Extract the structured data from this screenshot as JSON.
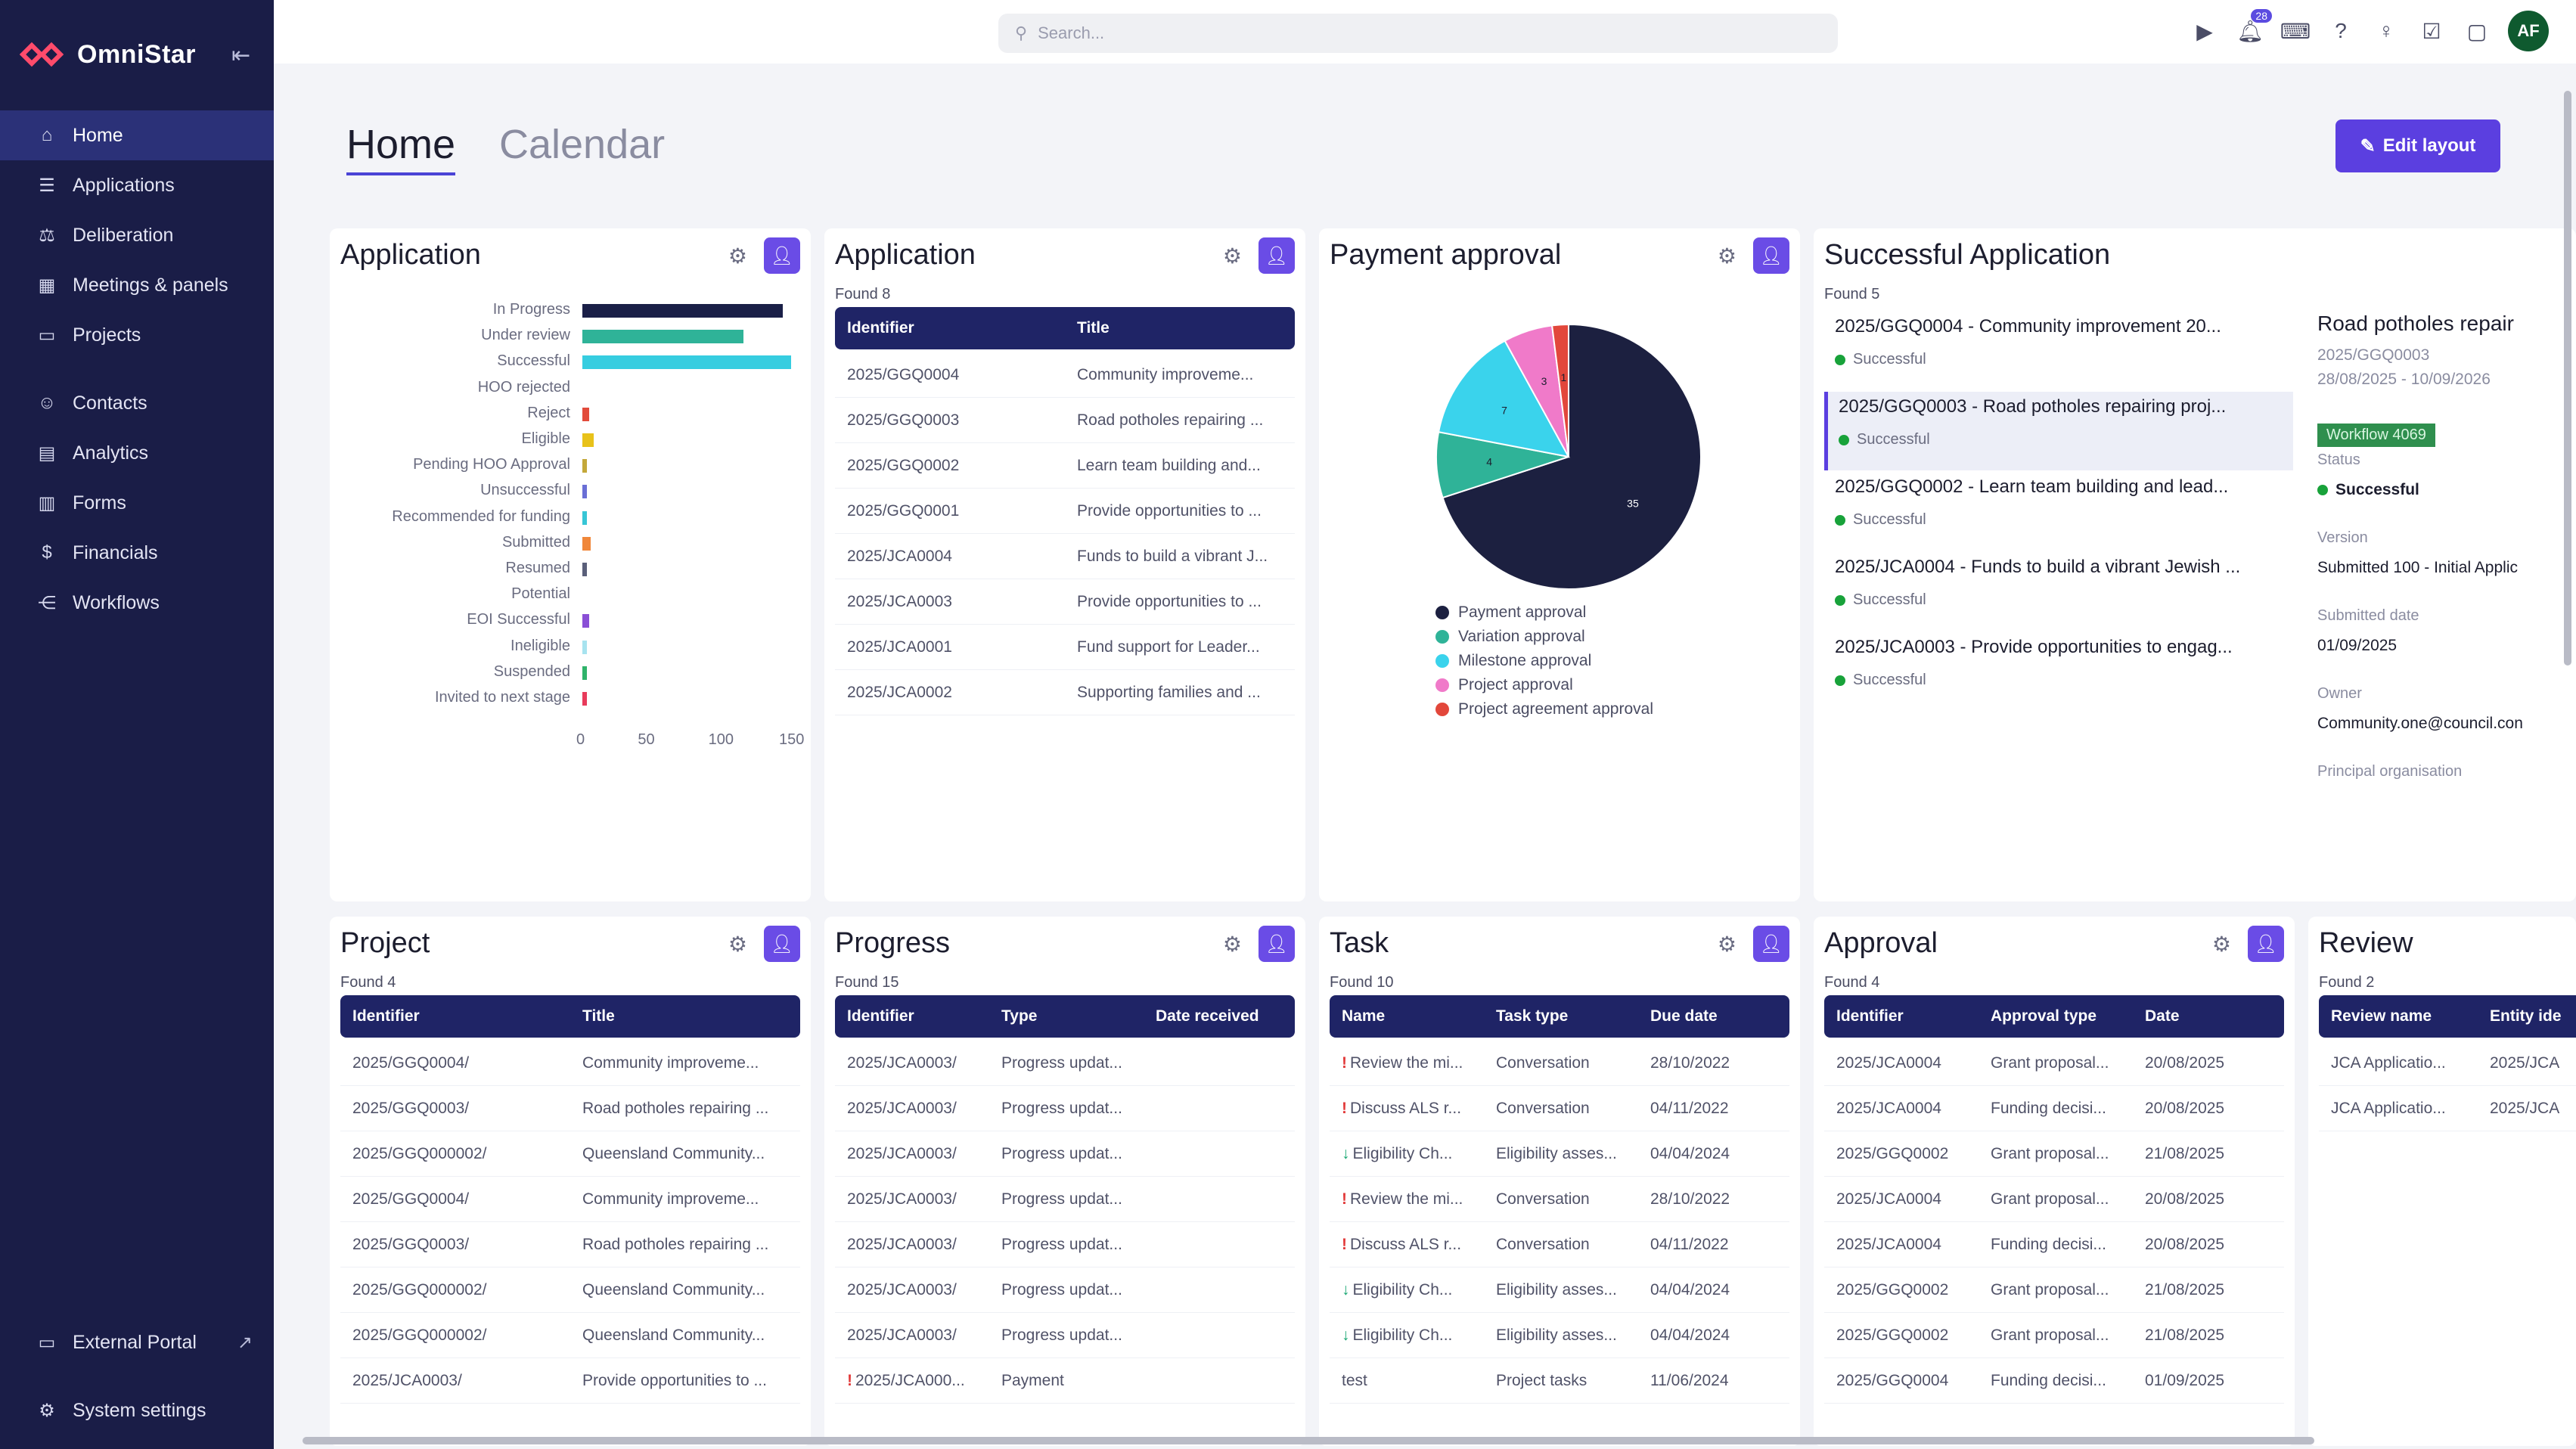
{
  "app": {
    "name": "OmniStar",
    "collapse_icon": "collapse-sidebar-icon"
  },
  "colors": {
    "sidebar_bg": "#1a1d47",
    "accent": "#5b3fe0",
    "table_header": "#1f2466",
    "success": "#18a23a"
  },
  "sidebar": {
    "items": [
      {
        "label": "Home",
        "icon": "home-icon",
        "active": true
      },
      {
        "label": "Applications",
        "icon": "list-icon"
      },
      {
        "label": "Deliberation",
        "icon": "gavel-icon"
      },
      {
        "label": "Meetings & panels",
        "icon": "calendar-icon"
      },
      {
        "label": "Projects",
        "icon": "monitor-icon"
      },
      {
        "label": "Contacts",
        "icon": "contacts-icon"
      },
      {
        "label": "Analytics",
        "icon": "analytics-icon"
      },
      {
        "label": "Forms",
        "icon": "forms-icon"
      },
      {
        "label": "Financials",
        "icon": "dollar-icon"
      },
      {
        "label": "Workflows",
        "icon": "workflow-icon"
      }
    ],
    "bottom": [
      {
        "label": "External Portal",
        "icon": "portal-icon"
      },
      {
        "label": "System settings",
        "icon": "settings-icon"
      }
    ]
  },
  "topbar": {
    "search_placeholder": "Search...",
    "notification_count": "28",
    "avatar": "AF"
  },
  "page": {
    "tabs": [
      {
        "label": "Home"
      },
      {
        "label": "Calendar"
      }
    ],
    "edit_layout": "Edit layout"
  },
  "widgets": {
    "application_chart": {
      "title": "Application"
    },
    "application_table": {
      "title": "Application",
      "found": "Found 8",
      "columns": [
        "Identifier",
        "Title"
      ],
      "rows": [
        [
          "2025/GGQ0004",
          "Community improveme..."
        ],
        [
          "2025/GGQ0003",
          "Road potholes repairing ..."
        ],
        [
          "2025/GGQ0002",
          "Learn team building and..."
        ],
        [
          "2025/GGQ0001",
          "Provide opportunities to ..."
        ],
        [
          "2025/JCA0004",
          "Funds to build a vibrant J..."
        ],
        [
          "2025/JCA0003",
          "Provide opportunities to ..."
        ],
        [
          "2025/JCA0001",
          "Fund support for Leader..."
        ],
        [
          "2025/JCA0002",
          "Supporting families and ..."
        ]
      ]
    },
    "payment_approval": {
      "title": "Payment approval"
    },
    "successful_application": {
      "title": "Successful Application",
      "found": "Found 5",
      "items": [
        {
          "title": "2025/GGQ0004 - Community improvement 20...",
          "status": "Successful"
        },
        {
          "title": "2025/GGQ0003 - Road potholes repairing proj...",
          "status": "Successful"
        },
        {
          "title": "2025/GGQ0002 - Learn team building and lead...",
          "status": "Successful"
        },
        {
          "title": "2025/JCA0004 - Funds to build a vibrant Jewish ...",
          "status": "Successful"
        },
        {
          "title": "2025/JCA0003 - Provide opportunities to engag...",
          "status": "Successful"
        }
      ],
      "detail": {
        "title": "Road potholes repair",
        "identifier": "2025/GGQ0003",
        "dates": "28/08/2025 - 10/09/2026",
        "workflow_badge": "Workflow 4069",
        "status_label": "Status",
        "status_value": "Successful",
        "version_label": "Version",
        "version_value": "Submitted 100 - Initial Applic",
        "submitted_label": "Submitted date",
        "submitted_value": "01/09/2025",
        "owner_label": "Owner",
        "owner_value": "Community.one@council.con",
        "org_label": "Principal organisation"
      }
    },
    "project": {
      "title": "Project",
      "found": "Found 4",
      "columns": [
        "Identifier",
        "Title"
      ],
      "rows": [
        [
          "2025/GGQ0004/",
          "Community improveme..."
        ],
        [
          "2025/GGQ0003/",
          "Road potholes repairing ..."
        ],
        [
          "2025/GGQ000002/",
          "Queensland Community..."
        ],
        [
          "2025/GGQ0004/",
          "Community improveme..."
        ],
        [
          "2025/GGQ0003/",
          "Road potholes repairing ..."
        ],
        [
          "2025/GGQ000002/",
          "Queensland Community..."
        ],
        [
          "2025/GGQ000002/",
          "Queensland Community..."
        ],
        [
          "2025/JCA0003/",
          "Provide opportunities to ..."
        ]
      ]
    },
    "progress": {
      "title": "Progress",
      "found": "Found 15",
      "columns": [
        "Identifier",
        "Type",
        "Date received"
      ],
      "rows": [
        [
          "2025/JCA0003/",
          "Progress updat...",
          ""
        ],
        [
          "2025/JCA0003/",
          "Progress updat...",
          ""
        ],
        [
          "2025/JCA0003/",
          "Progress updat...",
          ""
        ],
        [
          "2025/JCA0003/",
          "Progress updat...",
          ""
        ],
        [
          "2025/JCA0003/",
          "Progress updat...",
          ""
        ],
        [
          "2025/JCA0003/",
          "Progress updat...",
          ""
        ],
        [
          "2025/JCA0003/",
          "Progress updat...",
          ""
        ],
        [
          "2025/JCA000...",
          "Payment",
          ""
        ]
      ],
      "row_flags": [
        "",
        "",
        "",
        "",
        "",
        "",
        "",
        "!"
      ]
    },
    "task": {
      "title": "Task",
      "found": "Found 10",
      "columns": [
        "Name",
        "Task type",
        "Due date"
      ],
      "rows": [
        [
          "Review the mi...",
          "Conversation",
          "28/10/2022"
        ],
        [
          "Discuss ALS r...",
          "Conversation",
          "04/11/2022"
        ],
        [
          "Eligibility Ch...",
          "Eligibility asses...",
          "04/04/2024"
        ],
        [
          "Review the mi...",
          "Conversation",
          "28/10/2022"
        ],
        [
          "Discuss ALS r...",
          "Conversation",
          "04/11/2022"
        ],
        [
          "Eligibility Ch...",
          "Eligibility asses...",
          "04/04/2024"
        ],
        [
          "Eligibility Ch...",
          "Eligibility asses...",
          "04/04/2024"
        ],
        [
          "test",
          "Project tasks",
          "11/06/2024"
        ]
      ],
      "row_flags": [
        "!",
        "!",
        "↓",
        "!",
        "!",
        "↓",
        "↓",
        ""
      ]
    },
    "approval": {
      "title": "Approval",
      "found": "Found 4",
      "columns": [
        "Identifier",
        "Approval type",
        "Date"
      ],
      "rows": [
        [
          "2025/JCA0004",
          "Grant proposal...",
          "20/08/2025"
        ],
        [
          "2025/JCA0004",
          "Funding decisi...",
          "20/08/2025"
        ],
        [
          "2025/GGQ0002",
          "Grant proposal...",
          "21/08/2025"
        ],
        [
          "2025/JCA0004",
          "Grant proposal...",
          "20/08/2025"
        ],
        [
          "2025/JCA0004",
          "Funding decisi...",
          "20/08/2025"
        ],
        [
          "2025/GGQ0002",
          "Grant proposal...",
          "21/08/2025"
        ],
        [
          "2025/GGQ0002",
          "Grant proposal...",
          "21/08/2025"
        ],
        [
          "2025/GGQ0004",
          "Funding decisi...",
          "01/09/2025"
        ]
      ]
    },
    "review": {
      "title": "Review",
      "found": "Found 2",
      "columns": [
        "Review name",
        "Entity ide"
      ],
      "rows": [
        [
          "JCA Applicatio...",
          "2025/JCA"
        ],
        [
          "JCA Applicatio...",
          "2025/JCA"
        ]
      ]
    }
  },
  "chart_data": [
    {
      "type": "bar",
      "orientation": "horizontal",
      "categories": [
        "In Progress",
        "Under review",
        "Successful",
        "HOO rejected",
        "Reject",
        "Eligible",
        "Pending HOO Approval",
        "Unsuccessful",
        "Recommended for funding",
        "Submitted",
        "Resumed",
        "Potential",
        "EOI Successful",
        "Ineligible",
        "Suspended",
        "Invited to next stage"
      ],
      "values": [
        142,
        114,
        148,
        0,
        5,
        8,
        2,
        3,
        1,
        6,
        2,
        0,
        5,
        2,
        3,
        3
      ],
      "colors": [
        "#1a1f47",
        "#2fb398",
        "#36cde0",
        "#cccccc",
        "#e24b3b",
        "#e8c21a",
        "#c4a83a",
        "#6a6fd6",
        "#37c6d6",
        "#f0873a",
        "#5a5f7a",
        "#cccccc",
        "#8a4fd6",
        "#a7e3ef",
        "#2fb36a",
        "#e83b5b"
      ],
      "xticks": [
        "0",
        "50",
        "100",
        "150"
      ],
      "xlim": [
        0,
        150
      ]
    },
    {
      "type": "pie",
      "labels": [
        "Payment approval",
        "Variation approval",
        "Milestone approval",
        "Project approval",
        "Project agreement approval"
      ],
      "values": [
        35,
        4,
        7,
        3,
        1
      ],
      "slice_labels": [
        "35",
        "4",
        "7",
        "3",
        "1"
      ],
      "colors": [
        "#1c2040",
        "#2fb398",
        "#3ad3ec",
        "#f07ac9",
        "#e2473b"
      ]
    }
  ]
}
